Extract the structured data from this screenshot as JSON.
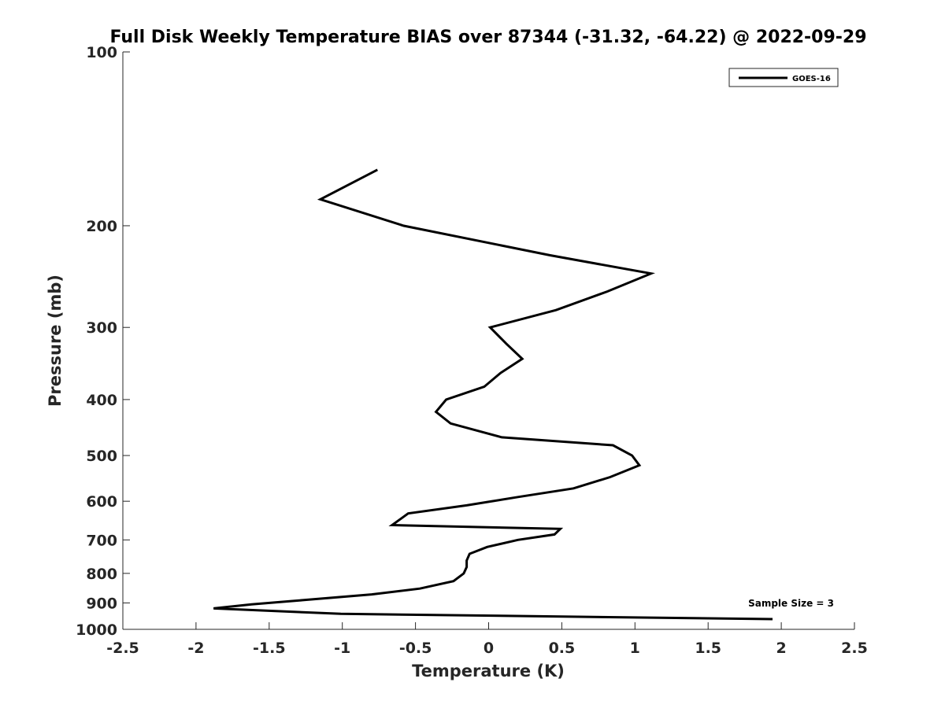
{
  "chart_data": {
    "type": "line",
    "title": "Full Disk Weekly Temperature BIAS over 87344 (-31.32, -64.22) @ 2022-09-29",
    "xlabel": "Temperature (K)",
    "ylabel": "Pressure (mb)",
    "xlim": [
      -2.5,
      2.5
    ],
    "ylim": [
      100,
      1000
    ],
    "y_scale": "log",
    "y_reversed": true,
    "x_ticks": [
      -2.5,
      -2,
      -1.5,
      -1,
      -0.5,
      0,
      0.5,
      1,
      1.5,
      2,
      2.5
    ],
    "x_tick_labels": [
      "-2.5",
      "-2",
      "-1.5",
      "-1",
      "-0.5",
      "0",
      "0.5",
      "1",
      "1.5",
      "2",
      "2.5"
    ],
    "y_ticks": [
      100,
      200,
      300,
      400,
      500,
      600,
      700,
      800,
      900,
      1000
    ],
    "y_tick_labels": [
      "100",
      "200",
      "300",
      "400",
      "500",
      "600",
      "700",
      "800",
      "900",
      "1000"
    ],
    "grid": false,
    "legend": {
      "placement": "top-right"
    },
    "series": [
      {
        "name": "GOES-16",
        "color": "#000000",
        "points": [
          [
            -0.76,
            160
          ],
          [
            -1.15,
            180
          ],
          [
            -0.58,
            200
          ],
          [
            0.42,
            225
          ],
          [
            1.11,
            242
          ],
          [
            0.81,
            260
          ],
          [
            0.46,
            280
          ],
          [
            0.01,
            300
          ],
          [
            0.12,
            320
          ],
          [
            0.23,
            340
          ],
          [
            0.08,
            360
          ],
          [
            -0.03,
            380
          ],
          [
            -0.29,
            400
          ],
          [
            -0.36,
            420
          ],
          [
            -0.26,
            440
          ],
          [
            0.09,
            465
          ],
          [
            0.85,
            480
          ],
          [
            0.98,
            500
          ],
          [
            1.03,
            520
          ],
          [
            0.83,
            545
          ],
          [
            0.58,
            570
          ],
          [
            0.2,
            590
          ],
          [
            -0.15,
            610
          ],
          [
            -0.55,
            630
          ],
          [
            -0.66,
            660
          ],
          [
            0.49,
            670
          ],
          [
            0.45,
            685
          ],
          [
            0.2,
            700
          ],
          [
            -0.01,
            720
          ],
          [
            -0.13,
            740
          ],
          [
            -0.15,
            760
          ],
          [
            -0.15,
            780
          ],
          [
            -0.17,
            800
          ],
          [
            -0.24,
            825
          ],
          [
            -0.47,
            850
          ],
          [
            -0.8,
            870
          ],
          [
            -1.27,
            890
          ],
          [
            -1.62,
            905
          ],
          [
            -1.88,
            920
          ],
          [
            -1.01,
            940
          ],
          [
            1.94,
            960
          ]
        ]
      }
    ],
    "annotations": [
      {
        "text": "Sample Size = 3",
        "placement": "bottom-right"
      }
    ]
  }
}
